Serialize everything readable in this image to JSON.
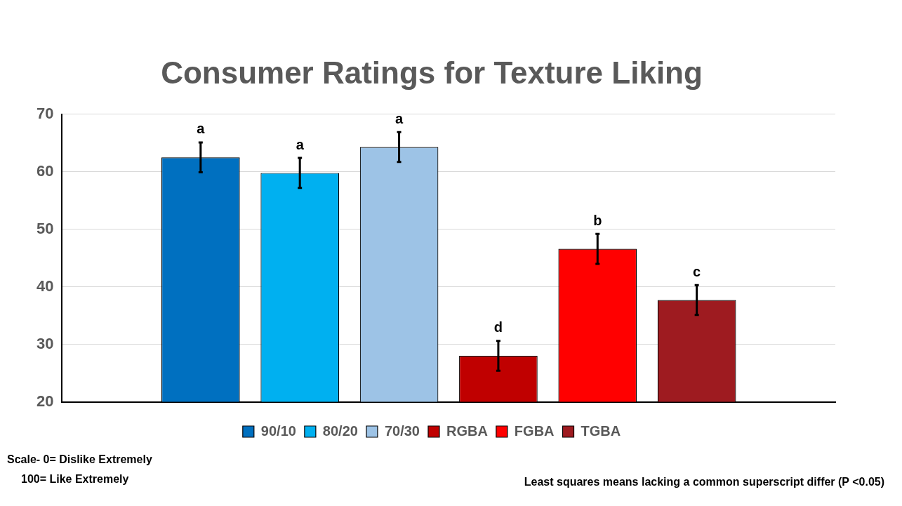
{
  "chart_data": {
    "type": "bar",
    "title": "Consumer Ratings for Texture Liking",
    "categories": [
      null
    ],
    "series": [
      {
        "name": "90/10",
        "color": "#0070c0",
        "values": [
          62.5
        ],
        "errors": [
          2.6
        ],
        "value_labels": [
          "a"
        ]
      },
      {
        "name": "80/20",
        "color": "#00b0f0",
        "values": [
          59.8
        ],
        "errors": [
          2.6
        ],
        "value_labels": [
          "a"
        ]
      },
      {
        "name": "70/30",
        "color": "#9dc3e6",
        "values": [
          64.3
        ],
        "errors": [
          2.6
        ],
        "value_labels": [
          "a"
        ]
      },
      {
        "name": "RGBA",
        "color": "#c00000",
        "values": [
          28.0
        ],
        "errors": [
          2.6
        ],
        "value_labels": [
          "d"
        ]
      },
      {
        "name": "FGBA",
        "color": "#ff0000",
        "values": [
          46.6
        ],
        "errors": [
          2.6
        ],
        "value_labels": [
          "b"
        ]
      },
      {
        "name": "TGBA",
        "color": "#9e1b20",
        "values": [
          37.7
        ],
        "errors": [
          2.6
        ],
        "value_labels": [
          "c"
        ]
      }
    ],
    "ylim": [
      20,
      70
    ],
    "yticks": [
      20,
      30,
      40,
      50,
      60,
      70
    ],
    "grid": "y",
    "legend": "bottom",
    "annotations": [
      "Scale- 0= Dislike Extremely",
      "100= Like Extremely",
      "Least squares means lacking a common superscript differ (P <0.05)"
    ]
  }
}
